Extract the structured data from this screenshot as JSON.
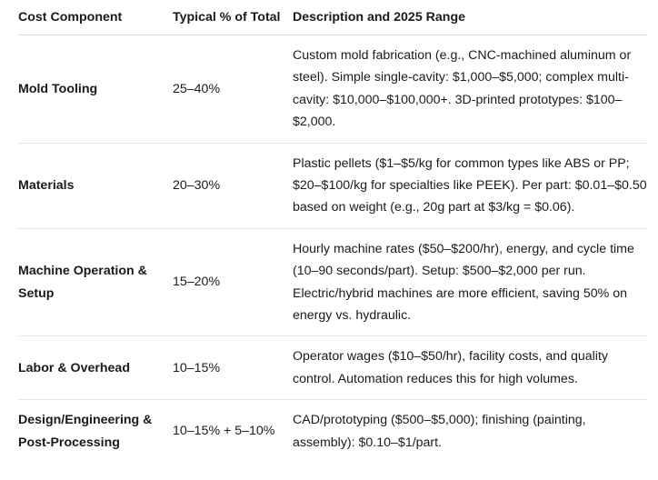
{
  "table": {
    "header": [
      "Cost Component",
      "Typical % of Total",
      "Description and 2025 Range"
    ],
    "rows": [
      [
        "Mold Tooling",
        "25–40%",
        "Custom mold fabrication (e.g., CNC-machined aluminum or steel). Simple single-cavity: $1,000–$5,000; complex multi-cavity: $10,000–$100,000+. 3D-printed prototypes: $100–$2,000."
      ],
      [
        "Materials",
        "20–30%",
        "Plastic pellets ($1–$5/kg for common types like ABS or PP; $20–$100/kg for specialties like PEEK). Per part: $0.01–$0.50 based on weight (e.g., 20g part at $3/kg = $0.06)."
      ],
      [
        "Machine Operation & Setup",
        "15–20%",
        "Hourly machine rates ($50–$200/hr), energy, and cycle time (10–90 seconds/part). Setup: $500–$2,000 per run. Electric/hybrid machines are more efficient, saving 50% on energy vs. hydraulic."
      ],
      [
        "Labor & Overhead",
        "10–15%",
        "Operator wages ($10–$50/hr), facility costs, and quality control. Automation reduces this for high volumes."
      ],
      [
        "Design/Engineering & Post-Processing",
        "10–15% + 5–10%",
        "CAD/prototyping ($500–$5,000); finishing (painting, assembly): $0.10–$1/part."
      ]
    ]
  }
}
